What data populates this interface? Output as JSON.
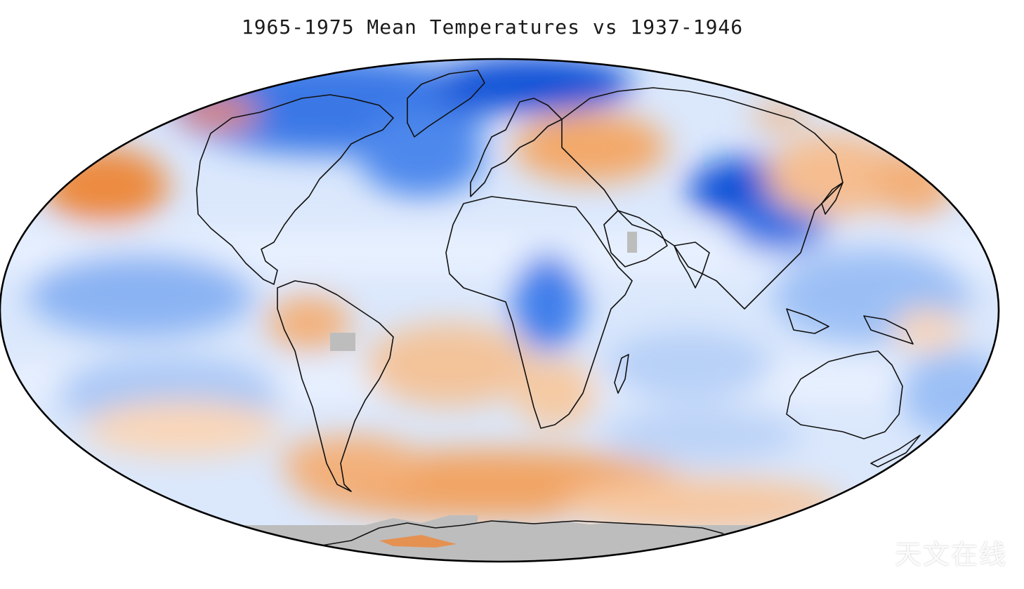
{
  "title": "1965-1975 Mean Temperatures vs 1937-1946",
  "watermark": "天文在线",
  "colors": {
    "ocean_neutral": "#f4f8ff",
    "cool_light": "#cfe0fb",
    "cool_mid": "#6fa4f0",
    "cool_strong": "#0b4fd6",
    "warm_light": "#fde0c6",
    "warm_mid": "#f3b07a",
    "warm_strong": "#ec8a3f",
    "no_data": "#bdbdbd",
    "coastline": "#111111",
    "outline": "#000000"
  },
  "projection": "Mollweide",
  "legend": "none"
}
